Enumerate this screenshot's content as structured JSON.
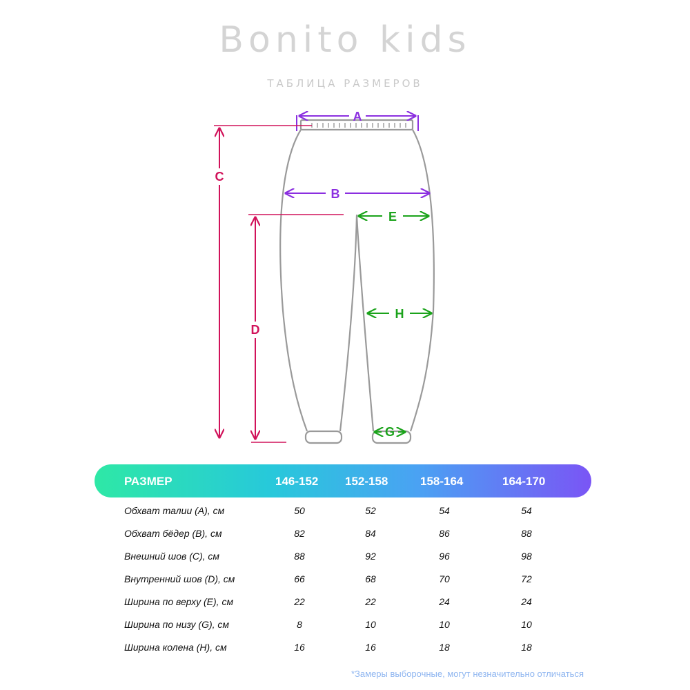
{
  "header": {
    "brand": "Bonito kids",
    "subtitle": "ТАБЛИЦА РАЗМЕРОВ"
  },
  "diagram": {
    "labels": {
      "a": "A",
      "b": "B",
      "c": "C",
      "d": "D",
      "e": "E",
      "g": "G",
      "h": "H"
    },
    "colors": {
      "purple": "#8b2fe0",
      "crimson": "#d1125a",
      "green": "#1ba31b",
      "outline": "#9a9a9a"
    }
  },
  "table": {
    "header_label": "РАЗМЕР",
    "sizes": [
      "146-152",
      "152-158",
      "158-164",
      "164-170"
    ],
    "rows": [
      {
        "label": "Обхват талии (A), см",
        "values": [
          "50",
          "52",
          "54",
          "54"
        ]
      },
      {
        "label": "Обхват бёдер (B), см",
        "values": [
          "82",
          "84",
          "86",
          "88"
        ]
      },
      {
        "label": "Внешний шов (C), см",
        "values": [
          "88",
          "92",
          "96",
          "98"
        ]
      },
      {
        "label": "Внутренний шов (D), см",
        "values": [
          "66",
          "68",
          "70",
          "72"
        ]
      },
      {
        "label": "Ширина по верху (E), см",
        "values": [
          "22",
          "22",
          "24",
          "24"
        ]
      },
      {
        "label": "Ширина по низу (G), см",
        "values": [
          "8",
          "10",
          "10",
          "10"
        ]
      },
      {
        "label": "Ширина колена (H), см",
        "values": [
          "16",
          "16",
          "18",
          "18"
        ]
      }
    ],
    "gradient": [
      "#2ee8a6",
      "#27c9da",
      "#4aa2f3",
      "#7a55f5"
    ]
  },
  "footnote": "*Замеры выборочные, могут незначительно отличаться"
}
